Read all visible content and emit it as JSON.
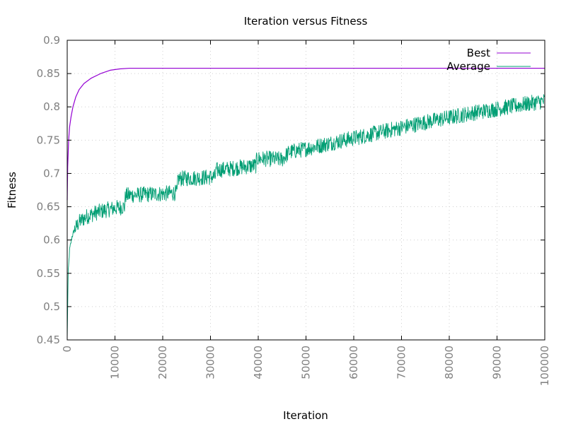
{
  "chart_data": {
    "type": "line",
    "title": "Iteration versus Fitness",
    "xlabel": "Iteration",
    "ylabel": "Fitness",
    "xlim": [
      0,
      100000
    ],
    "ylim": [
      0.45,
      0.9
    ],
    "x_ticks": [
      0,
      10000,
      20000,
      30000,
      40000,
      50000,
      60000,
      70000,
      80000,
      90000,
      100000
    ],
    "x_tick_labels": [
      "0",
      "10000",
      "20000",
      "30000",
      "40000",
      "50000",
      "60000",
      "70000",
      "80000",
      "90000",
      "100000"
    ],
    "y_ticks": [
      0.45,
      0.5,
      0.55,
      0.6,
      0.65,
      0.7,
      0.75,
      0.8,
      0.85,
      0.9
    ],
    "y_tick_labels": [
      "0.45",
      "0.5",
      "0.55",
      "0.6",
      "0.65",
      "0.7",
      "0.75",
      "0.8",
      "0.85",
      "0.9"
    ],
    "grid": true,
    "legend_position": "top-right",
    "series": [
      {
        "name": "Best",
        "color": "#9400d3",
        "x": [
          0,
          100,
          300,
          500,
          800,
          1200,
          1800,
          2500,
          3500,
          5000,
          7000,
          9000,
          11000,
          13000,
          20000,
          40000,
          60000,
          80000,
          100000
        ],
        "y": [
          0.66,
          0.71,
          0.75,
          0.77,
          0.785,
          0.8,
          0.815,
          0.826,
          0.835,
          0.843,
          0.85,
          0.855,
          0.857,
          0.858,
          0.858,
          0.858,
          0.858,
          0.858,
          0.858
        ]
      },
      {
        "name": "Average",
        "color": "#009e73",
        "x": [
          0,
          200,
          500,
          1000,
          1500,
          2500,
          4000,
          6000,
          8000,
          10000,
          12000,
          12200,
          15000,
          18000,
          21000,
          23000,
          23200,
          26000,
          29000,
          31000,
          31200,
          34000,
          37000,
          39500,
          39700,
          42000,
          45000,
          46500,
          50000,
          53000,
          56000,
          60000,
          65000,
          70000,
          75000,
          80000,
          85000,
          90000,
          95000,
          100000
        ],
        "y": [
          0.45,
          0.55,
          0.585,
          0.605,
          0.615,
          0.627,
          0.635,
          0.641,
          0.645,
          0.648,
          0.65,
          0.667,
          0.668,
          0.669,
          0.67,
          0.671,
          0.692,
          0.693,
          0.694,
          0.695,
          0.705,
          0.707,
          0.71,
          0.712,
          0.722,
          0.722,
          0.721,
          0.732,
          0.737,
          0.742,
          0.747,
          0.753,
          0.761,
          0.769,
          0.777,
          0.784,
          0.791,
          0.797,
          0.803,
          0.809
        ]
      }
    ]
  }
}
